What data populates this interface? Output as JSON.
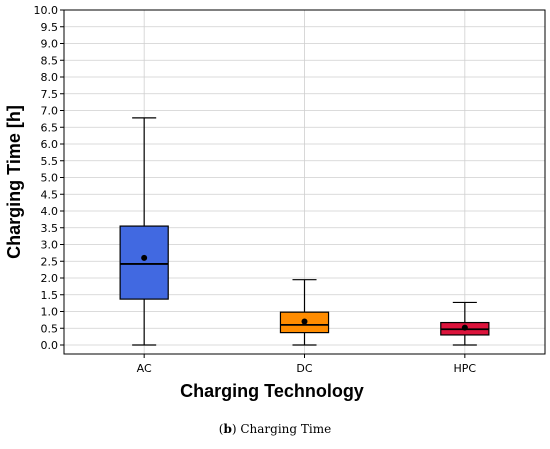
{
  "chart_data": {
    "type": "box",
    "categories": [
      "AC",
      "DC",
      "HPC"
    ],
    "xlabel": "Charging Technology",
    "ylabel": "Charging Time [h]",
    "ylim": [
      0.0,
      10.0
    ],
    "yticks": [
      "0.0",
      "0.5",
      "1.0",
      "1.5",
      "2.0",
      "2.5",
      "3.0",
      "3.5",
      "4.0",
      "4.5",
      "5.0",
      "5.5",
      "6.0",
      "6.5",
      "7.0",
      "7.5",
      "8.0",
      "8.5",
      "9.0",
      "9.5",
      "10.0"
    ],
    "grid": true,
    "boxes": [
      {
        "category": "AC",
        "min": 0.0,
        "q1": 1.37,
        "median": 2.42,
        "q3": 3.55,
        "max": 6.78,
        "mean": 2.6,
        "color": "#4169e1"
      },
      {
        "category": "DC",
        "min": 0.0,
        "q1": 0.37,
        "median": 0.6,
        "q3": 0.98,
        "max": 1.95,
        "mean": 0.7,
        "color": "#ff8c00"
      },
      {
        "category": "HPC",
        "min": 0.0,
        "q1": 0.3,
        "median": 0.47,
        "q3": 0.67,
        "max": 1.27,
        "mean": 0.52,
        "color": "#dc143c"
      }
    ]
  },
  "caption": {
    "label": "b",
    "text": "Charging Time"
  }
}
